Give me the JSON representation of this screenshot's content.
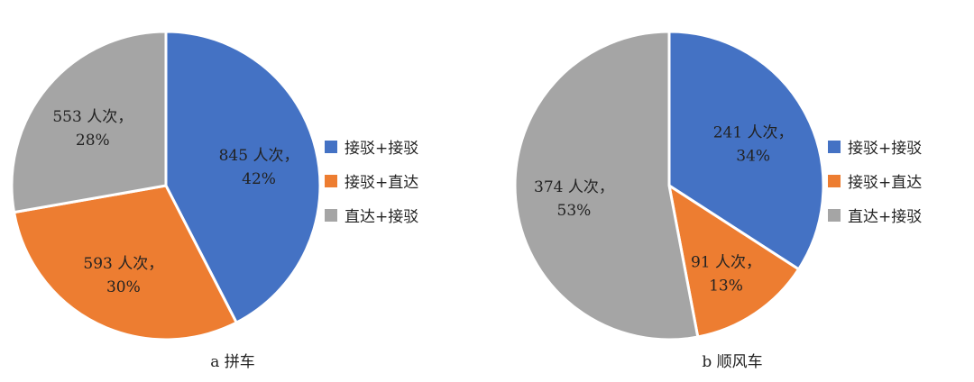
{
  "chart_data": [
    {
      "type": "pie",
      "caption": "a 拼车",
      "slices": [
        {
          "category": "接驳+接驳",
          "value": 845,
          "percent": 42,
          "label_line1": "845 人次，",
          "label_line2": "42%",
          "color": "#4472c4"
        },
        {
          "category": "接驳+直达",
          "value": 593,
          "percent": 30,
          "label_line1": "593 人次，",
          "label_line2": "30%",
          "color": "#ed7d31"
        },
        {
          "category": "直达+接驳",
          "value": 553,
          "percent": 28,
          "label_line1": "553 人次，",
          "label_line2": "28%",
          "color": "#a5a5a5"
        }
      ],
      "legend": [
        "接驳+接驳",
        "接驳+直达",
        "直达+接驳"
      ],
      "legend_placement": "right"
    },
    {
      "type": "pie",
      "caption": "b 顺风车",
      "slices": [
        {
          "category": "接驳+接驳",
          "value": 241,
          "percent": 34,
          "label_line1": "241 人次，",
          "label_line2": "34%",
          "color": "#4472c4"
        },
        {
          "category": "接驳+直达",
          "value": 91,
          "percent": 13,
          "label_line1": "91 人次，",
          "label_line2": "13%",
          "color": "#ed7d31"
        },
        {
          "category": "直达+接驳",
          "value": 374,
          "percent": 53,
          "label_line1": "374 人次，",
          "label_line2": "53%",
          "color": "#a5a5a5"
        }
      ],
      "legend": [
        "接驳+接驳",
        "接驳+直达",
        "直达+接驳"
      ],
      "legend_placement": "right"
    }
  ]
}
